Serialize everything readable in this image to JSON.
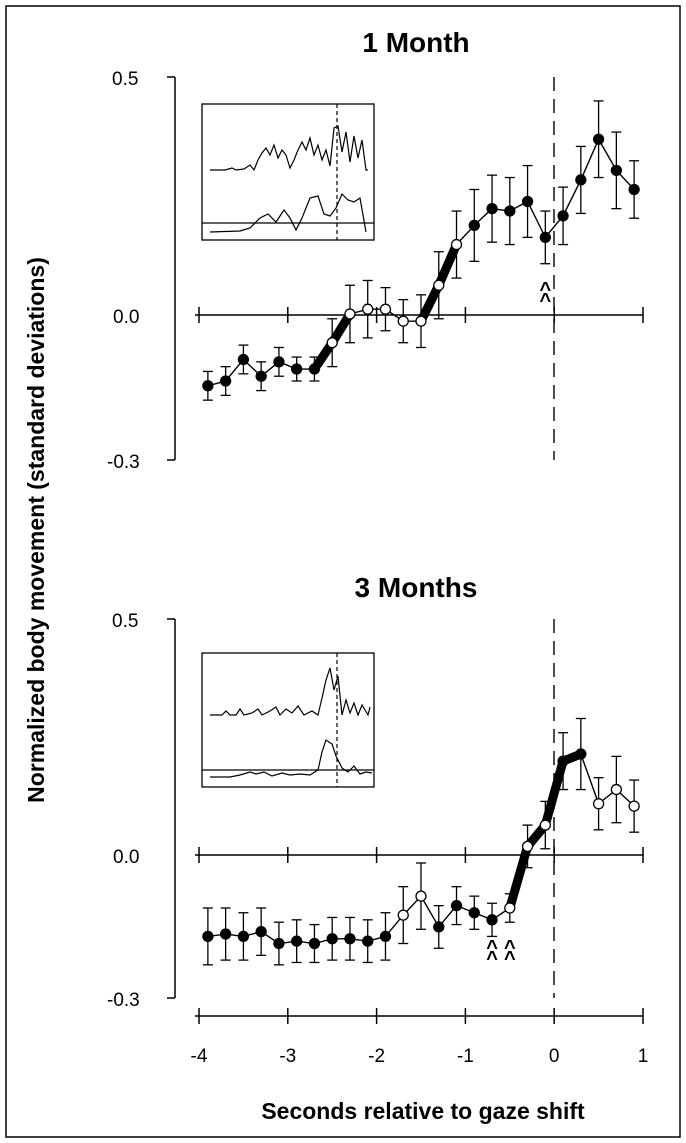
{
  "figure": {
    "xlabel": "Seconds relative to gaze shift",
    "ylabel": "Normalized body movement (standard deviations)",
    "x_ticks": [
      -4,
      -3,
      -2,
      -1,
      0,
      1
    ],
    "x_tick_labels": [
      "-4",
      "-3",
      "-2",
      "-1",
      "0",
      "1"
    ]
  },
  "chart_data": [
    {
      "type": "line",
      "title": "1 Month",
      "xlabel": "Seconds relative to gaze shift",
      "ylabel": "Normalized body movement (standard deviations)",
      "ylim": [
        -0.3,
        0.5
      ],
      "xlim": [
        -4,
        1
      ],
      "y_ticks": [
        0.5,
        0.0,
        -0.3
      ],
      "y_tick_labels": [
        "0.5",
        "0.0",
        "-0.3"
      ],
      "grid": false,
      "points": [
        {
          "x": -3.9,
          "y": -0.145,
          "err": 0.03,
          "filled": true
        },
        {
          "x": -3.7,
          "y": -0.135,
          "err": 0.03,
          "filled": true
        },
        {
          "x": -3.5,
          "y": -0.09,
          "err": 0.03,
          "filled": true
        },
        {
          "x": -3.3,
          "y": -0.125,
          "err": 0.03,
          "filled": true
        },
        {
          "x": -3.1,
          "y": -0.095,
          "err": 0.03,
          "filled": true
        },
        {
          "x": -2.9,
          "y": -0.11,
          "err": 0.025,
          "filled": true
        },
        {
          "x": -2.7,
          "y": -0.11,
          "err": 0.025,
          "filled": true
        },
        {
          "x": -2.5,
          "y": -0.055,
          "err": 0.05,
          "filled": false
        },
        {
          "x": -2.3,
          "y": 0.005,
          "err": 0.06,
          "filled": false
        },
        {
          "x": -2.1,
          "y": 0.015,
          "err": 0.06,
          "filled": false
        },
        {
          "x": -1.9,
          "y": 0.015,
          "err": 0.045,
          "filled": false
        },
        {
          "x": -1.7,
          "y": -0.01,
          "err": 0.045,
          "filled": false
        },
        {
          "x": -1.5,
          "y": -0.01,
          "err": 0.055,
          "filled": false
        },
        {
          "x": -1.3,
          "y": 0.065,
          "err": 0.07,
          "filled": false
        },
        {
          "x": -1.1,
          "y": 0.15,
          "err": 0.07,
          "filled": false
        },
        {
          "x": -0.9,
          "y": 0.19,
          "err": 0.075,
          "filled": true
        },
        {
          "x": -0.7,
          "y": 0.225,
          "err": 0.07,
          "filled": true
        },
        {
          "x": -0.5,
          "y": 0.22,
          "err": 0.07,
          "filled": true
        },
        {
          "x": -0.3,
          "y": 0.24,
          "err": 0.075,
          "filled": true
        },
        {
          "x": -0.1,
          "y": 0.165,
          "err": 0.055,
          "filled": true
        },
        {
          "x": 0.1,
          "y": 0.21,
          "err": 0.06,
          "filled": true
        },
        {
          "x": 0.3,
          "y": 0.285,
          "err": 0.07,
          "filled": true
        },
        {
          "x": 0.5,
          "y": 0.37,
          "err": 0.08,
          "filled": true
        },
        {
          "x": 0.7,
          "y": 0.305,
          "err": 0.08,
          "filled": true
        },
        {
          "x": 0.9,
          "y": 0.265,
          "err": 0.06,
          "filled": true
        }
      ],
      "thick_segments": [
        [
          -2.7,
          -2.3
        ],
        [
          -1.5,
          -1.1
        ]
      ],
      "markers": [
        {
          "x": -0.1,
          "label": "^"
        }
      ],
      "dashed_vline_x": 0
    },
    {
      "type": "line",
      "title": "3 Months",
      "xlabel": "Seconds relative to gaze shift",
      "ylabel": "Normalized body movement (standard deviations)",
      "ylim": [
        -0.3,
        0.5
      ],
      "xlim": [
        -4,
        1
      ],
      "y_ticks": [
        0.5,
        0.0,
        -0.3
      ],
      "y_tick_labels": [
        "0.5",
        "0.0",
        "-0.3"
      ],
      "grid": false,
      "points": [
        {
          "x": -3.9,
          "y": -0.17,
          "err": 0.06,
          "filled": true
        },
        {
          "x": -3.7,
          "y": -0.165,
          "err": 0.055,
          "filled": true
        },
        {
          "x": -3.5,
          "y": -0.17,
          "err": 0.05,
          "filled": true
        },
        {
          "x": -3.3,
          "y": -0.16,
          "err": 0.05,
          "filled": true
        },
        {
          "x": -3.1,
          "y": -0.185,
          "err": 0.045,
          "filled": true
        },
        {
          "x": -2.9,
          "y": -0.18,
          "err": 0.045,
          "filled": true
        },
        {
          "x": -2.7,
          "y": -0.185,
          "err": 0.04,
          "filled": true
        },
        {
          "x": -2.5,
          "y": -0.175,
          "err": 0.045,
          "filled": true
        },
        {
          "x": -2.3,
          "y": -0.175,
          "err": 0.045,
          "filled": true
        },
        {
          "x": -2.1,
          "y": -0.18,
          "err": 0.045,
          "filled": true
        },
        {
          "x": -1.9,
          "y": -0.17,
          "err": 0.05,
          "filled": true
        },
        {
          "x": -1.7,
          "y": -0.125,
          "err": 0.06,
          "filled": false
        },
        {
          "x": -1.5,
          "y": -0.085,
          "err": 0.07,
          "filled": false
        },
        {
          "x": -1.3,
          "y": -0.15,
          "err": 0.045,
          "filled": true
        },
        {
          "x": -1.1,
          "y": -0.105,
          "err": 0.04,
          "filled": true
        },
        {
          "x": -0.9,
          "y": -0.12,
          "err": 0.035,
          "filled": true
        },
        {
          "x": -0.7,
          "y": -0.135,
          "err": 0.035,
          "filled": true
        },
        {
          "x": -0.5,
          "y": -0.11,
          "err": 0.03,
          "filled": false
        },
        {
          "x": -0.3,
          "y": 0.02,
          "err": 0.045,
          "filled": false
        },
        {
          "x": -0.1,
          "y": 0.065,
          "err": 0.05,
          "filled": false
        },
        {
          "x": 0.1,
          "y": 0.2,
          "err": 0.06,
          "filled": true
        },
        {
          "x": 0.3,
          "y": 0.215,
          "err": 0.075,
          "filled": true
        },
        {
          "x": 0.5,
          "y": 0.11,
          "err": 0.055,
          "filled": false
        },
        {
          "x": 0.7,
          "y": 0.14,
          "err": 0.07,
          "filled": false
        },
        {
          "x": 0.9,
          "y": 0.105,
          "err": 0.055,
          "filled": false
        }
      ],
      "thick_segments": [
        [
          -0.5,
          0.3
        ]
      ],
      "markers": [
        {
          "x": -0.7,
          "label": "^"
        },
        {
          "x": -0.5,
          "label": "^"
        }
      ],
      "dashed_vline_x": 0
    }
  ]
}
